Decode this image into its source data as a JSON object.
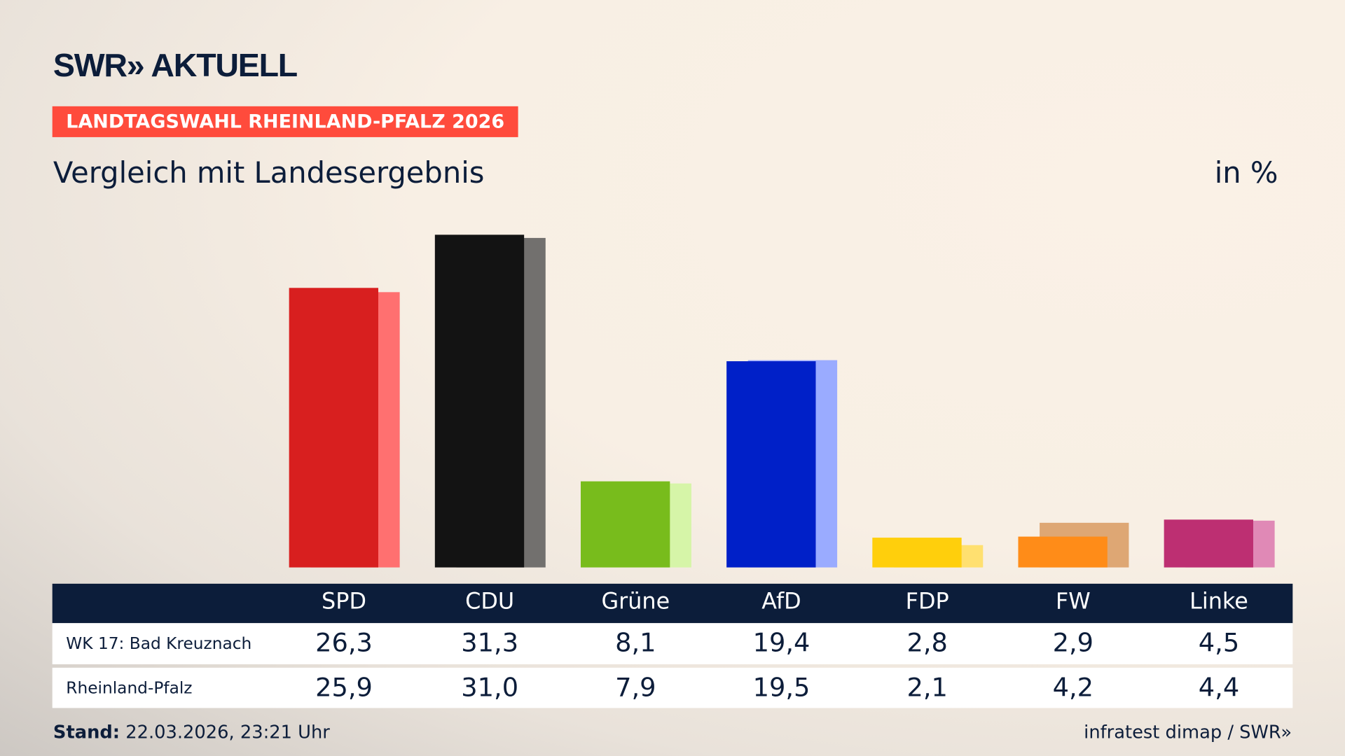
{
  "header": {
    "logo": "SWR» AKTUELL",
    "badge": "LANDTAGSWAHL RHEINLAND-PFALZ 2026",
    "subtitle": "Vergleich mit Landesergebnis",
    "unit": "in %"
  },
  "chart_data": {
    "type": "bar",
    "categories": [
      "SPD",
      "CDU",
      "Grüne",
      "AfD",
      "FDP",
      "FW",
      "Linke"
    ],
    "series": [
      {
        "name": "WK 17: Bad Kreuznach",
        "values": [
          26.3,
          31.3,
          8.1,
          19.4,
          2.8,
          2.9,
          4.5
        ],
        "display": [
          "26,3",
          "31,3",
          "8,1",
          "19,4",
          "2,8",
          "2,9",
          "4,5"
        ]
      },
      {
        "name": "Rheinland-Pfalz",
        "values": [
          25.9,
          31.0,
          7.9,
          19.5,
          2.1,
          4.2,
          4.4
        ],
        "display": [
          "25,9",
          "31,0",
          "7,9",
          "19,5",
          "2,1",
          "4,2",
          "4,4"
        ]
      }
    ],
    "colors": {
      "primary": [
        "#d81f1f",
        "#131313",
        "#78bc1c",
        "#0020c8",
        "#ffcf0c",
        "#ff8c18",
        "#bd2f72"
      ],
      "secondary": [
        "#ff7070",
        "#72706e",
        "#d6f5a8",
        "#9aabff",
        "#ffe070",
        "#dea774",
        "#e089b6"
      ]
    },
    "ylim": [
      0,
      32
    ]
  },
  "footer": {
    "stand_label": "Stand:",
    "stand_value": "22.03.2026, 23:21 Uhr",
    "source": "infratest dimap / SWR»"
  }
}
